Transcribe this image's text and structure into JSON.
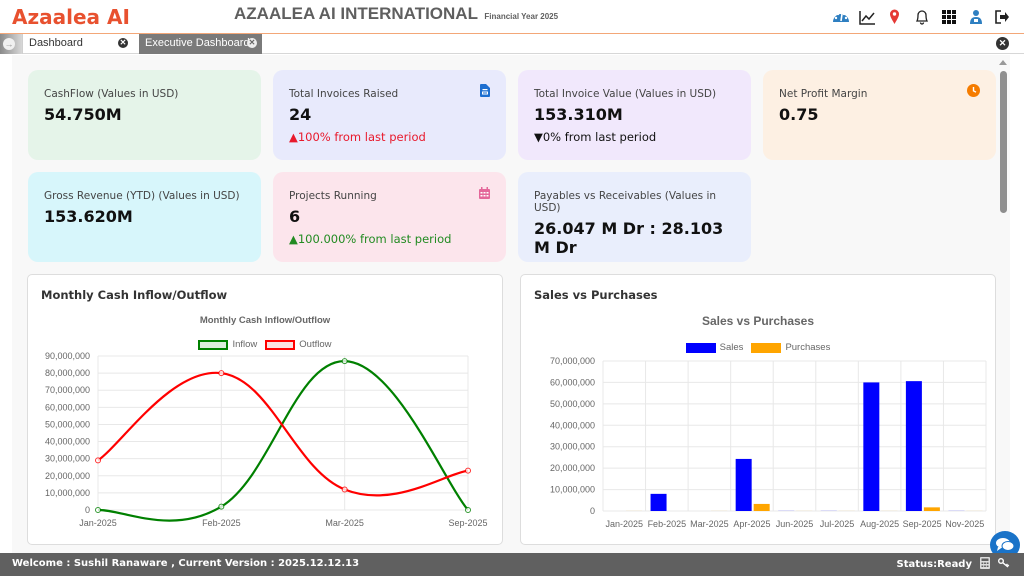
{
  "header": {
    "logo": "Azaalea AI",
    "company": "AZAALEA AI INTERNATIONAL",
    "financial_year": "Financial Year 2025",
    "icons": [
      "dashboard-gauge-icon",
      "trend-chart-icon",
      "location-pin-icon",
      "bell-icon",
      "apps-grid-icon",
      "user-org-icon",
      "logout-icon"
    ]
  },
  "tabs": [
    {
      "label": "Dashboard",
      "active": false
    },
    {
      "label": "Executive Dashboard",
      "active": true
    }
  ],
  "cards": [
    {
      "label": "CashFlow (Values in USD)",
      "value": "54.750M",
      "trend": "",
      "bg": "#e5f4e9"
    },
    {
      "label": "Total Invoices Raised",
      "value": "24",
      "trend": "▲100% from last period",
      "trend_color": "#e8192c",
      "icon": "invoice-file-icon",
      "bg": "#e8eafc"
    },
    {
      "label": "Total Invoice Value (Values in USD)",
      "value": "153.310M",
      "trend": "▼0% from last period",
      "trend_color": "#111111",
      "bg": "#f1e8fc"
    },
    {
      "label": "Net Profit Margin",
      "value": "0.75",
      "trend": "",
      "icon": "clock-icon",
      "bg": "#fdf0e3"
    },
    {
      "label": "Gross Revenue (YTD) (Values in USD)",
      "value": "153.620M",
      "trend": "",
      "bg": "#d7f6fb"
    },
    {
      "label": "Projects Running",
      "value": "6",
      "trend": "▲100.000% from last period",
      "trend_color": "#228b22",
      "icon": "calendar-icon",
      "bg": "#fce5ec"
    },
    {
      "label": "Payables vs Receivables (Values in USD)",
      "value": "26.047 M Dr : 28.103 M Dr",
      "trend": "",
      "bg": "#e9eefc"
    }
  ],
  "panels": {
    "cashflow": {
      "title": "Monthly Cash Inflow/Outflow"
    },
    "sales": {
      "title": "Sales vs Purchases"
    }
  },
  "chart_data": [
    {
      "type": "line",
      "title": "Monthly Cash Inflow/Outflow",
      "categories": [
        "Jan-2025",
        "Feb-2025",
        "Mar-2025",
        "Sep-2025"
      ],
      "series": [
        {
          "name": "Inflow",
          "color": "#008000",
          "values": [
            0,
            2000000,
            87000000,
            0
          ]
        },
        {
          "name": "Outflow",
          "color": "#ff0000",
          "values": [
            29000000,
            80000000,
            12000000,
            23000000
          ]
        }
      ],
      "y_ticks": [
        "0",
        "10,000,000",
        "20,000,000",
        "30,000,000",
        "40,000,000",
        "50,000,000",
        "60,000,000",
        "70,000,000",
        "80,000,000",
        "90,000,000"
      ],
      "ylim": [
        0,
        90000000
      ],
      "legend_position": "top",
      "grid": true
    },
    {
      "type": "bar",
      "title": "Sales vs Purchases",
      "categories": [
        "Jan-2025",
        "Feb-2025",
        "Mar-2025",
        "Apr-2025",
        "Jun-2025",
        "Jul-2025",
        "Aug-2025",
        "Sep-2025",
        "Nov-2025"
      ],
      "series": [
        {
          "name": "Sales",
          "color": "#0000ff",
          "values": [
            0,
            8000000,
            0,
            24300000,
            200000,
            200000,
            60000000,
            60600000,
            200000
          ]
        },
        {
          "name": "Purchases",
          "color": "#ffa500",
          "values": [
            100000,
            0,
            100000,
            3300000,
            100000,
            100000,
            100000,
            1700000,
            100000
          ]
        }
      ],
      "y_ticks": [
        "0",
        "10,000,000",
        "20,000,000",
        "30,000,000",
        "40,000,000",
        "50,000,000",
        "60,000,000",
        "70,000,000"
      ],
      "ylim": [
        0,
        70000000
      ],
      "legend_position": "top",
      "grid": true
    }
  ],
  "status": {
    "welcome": "Welcome : Sushil Ranaware , Current Version : 2025.12.12.13",
    "state": "Status:Ready"
  }
}
